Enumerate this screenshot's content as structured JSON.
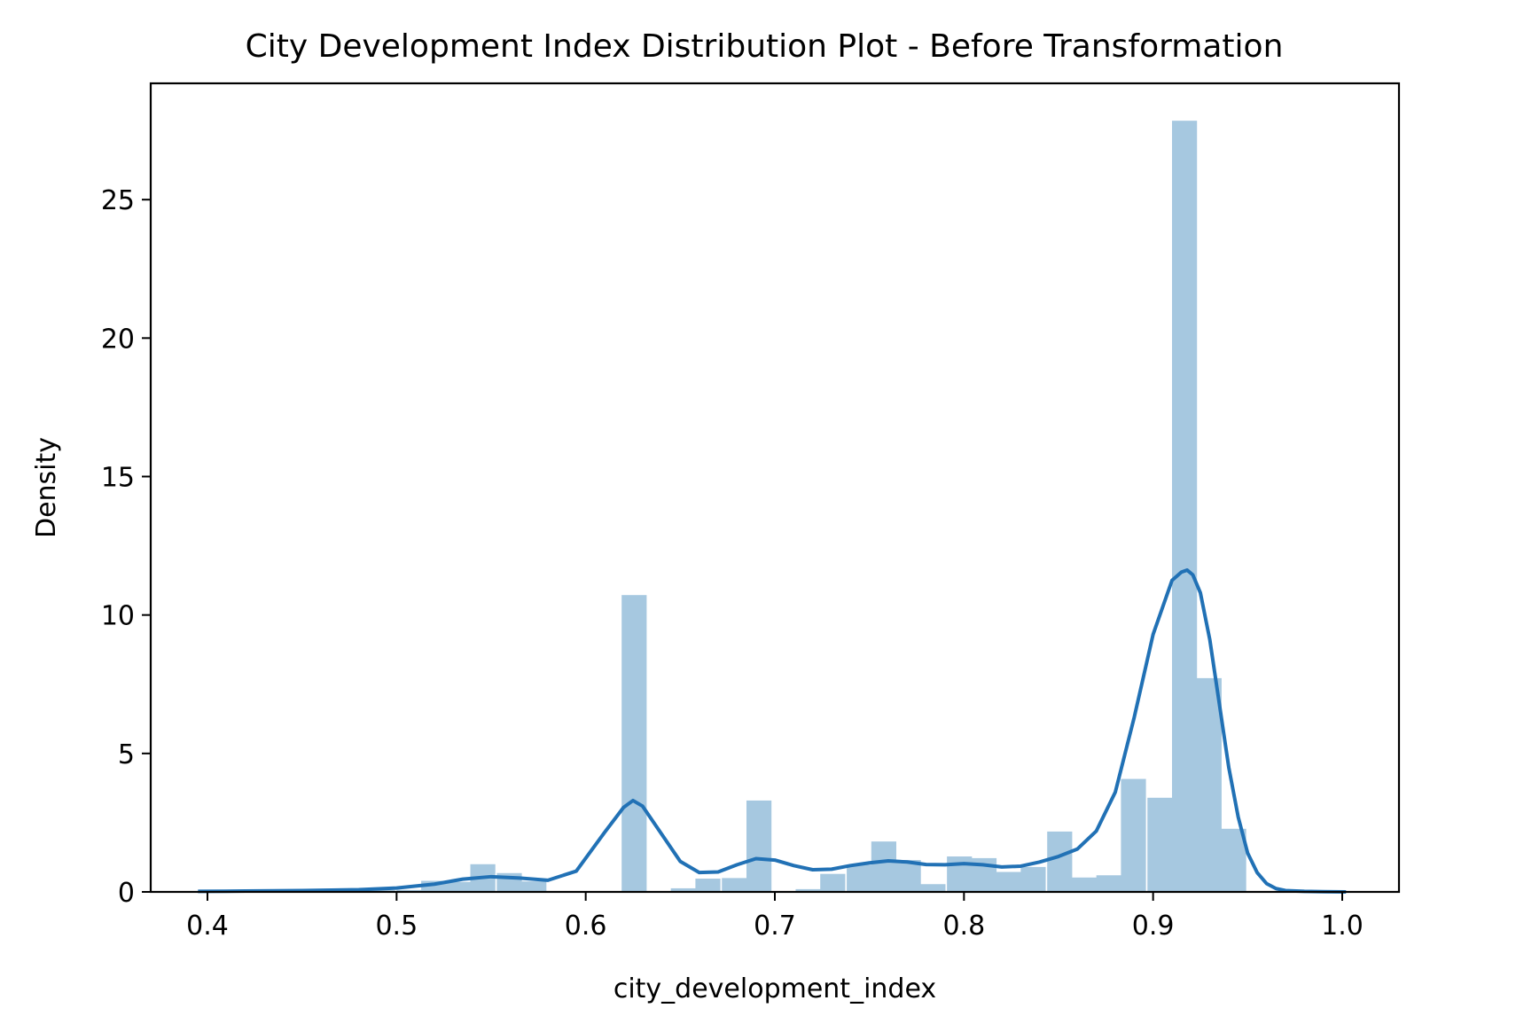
{
  "chart_data": {
    "type": "histogram",
    "title": "City Development Index Distribution Plot - Before Transformation",
    "xlabel": "city_development_index",
    "ylabel": "Density",
    "xlim": [
      0.37,
      1.03
    ],
    "ylim": [
      0,
      29.2
    ],
    "xticks": [
      0.4,
      0.5,
      0.6,
      0.7,
      0.8,
      0.9,
      1.0
    ],
    "xtick_labels": [
      "0.4",
      "0.5",
      "0.6",
      "0.7",
      "0.8",
      "0.9",
      "1.0"
    ],
    "yticks": [
      0,
      5,
      10,
      15,
      20,
      25
    ],
    "ytick_labels": [
      "0",
      "5",
      "10",
      "15",
      "20",
      "25"
    ],
    "grid": false,
    "legend": "none",
    "colors": {
      "bars": "#a6c8e0",
      "kde": "#2171b5",
      "axes": "#000000"
    },
    "bin_width": 0.01322,
    "bins": [
      {
        "x0": 0.447,
        "density": 0.05
      },
      {
        "x0": 0.46,
        "density": 0.05
      },
      {
        "x0": 0.486,
        "density": 0.06
      },
      {
        "x0": 0.5,
        "density": 0.07
      },
      {
        "x0": 0.513,
        "density": 0.4
      },
      {
        "x0": 0.526,
        "density": 0.36
      },
      {
        "x0": 0.539,
        "density": 1.0
      },
      {
        "x0": 0.553,
        "density": 0.68
      },
      {
        "x0": 0.566,
        "density": 0.38
      },
      {
        "x0": 0.619,
        "density": 10.72
      },
      {
        "x0": 0.645,
        "density": 0.13
      },
      {
        "x0": 0.658,
        "density": 0.48
      },
      {
        "x0": 0.672,
        "density": 0.5
      },
      {
        "x0": 0.685,
        "density": 3.3
      },
      {
        "x0": 0.711,
        "density": 0.1
      },
      {
        "x0": 0.724,
        "density": 0.65
      },
      {
        "x0": 0.738,
        "density": 0.98
      },
      {
        "x0": 0.751,
        "density": 1.82
      },
      {
        "x0": 0.764,
        "density": 1.15
      },
      {
        "x0": 0.777,
        "density": 0.28
      },
      {
        "x0": 0.791,
        "density": 1.28
      },
      {
        "x0": 0.804,
        "density": 1.22
      },
      {
        "x0": 0.817,
        "density": 0.72
      },
      {
        "x0": 0.83,
        "density": 0.9
      },
      {
        "x0": 0.844,
        "density": 2.18
      },
      {
        "x0": 0.857,
        "density": 0.52
      },
      {
        "x0": 0.87,
        "density": 0.6
      },
      {
        "x0": 0.883,
        "density": 4.08
      },
      {
        "x0": 0.897,
        "density": 3.4
      },
      {
        "x0": 0.91,
        "density": 27.85
      },
      {
        "x0": 0.923,
        "density": 7.72
      },
      {
        "x0": 0.936,
        "density": 2.28
      }
    ],
    "kde": {
      "x": [
        0.395,
        0.42,
        0.45,
        0.48,
        0.5,
        0.52,
        0.535,
        0.55,
        0.565,
        0.58,
        0.595,
        0.61,
        0.62,
        0.625,
        0.63,
        0.64,
        0.65,
        0.66,
        0.67,
        0.68,
        0.69,
        0.7,
        0.71,
        0.72,
        0.73,
        0.74,
        0.75,
        0.76,
        0.77,
        0.78,
        0.79,
        0.8,
        0.81,
        0.82,
        0.83,
        0.84,
        0.85,
        0.86,
        0.87,
        0.88,
        0.89,
        0.9,
        0.91,
        0.915,
        0.918,
        0.921,
        0.925,
        0.93,
        0.935,
        0.94,
        0.945,
        0.95,
        0.955,
        0.96,
        0.965,
        0.97,
        0.98,
        0.99,
        1.002
      ],
      "y": [
        0.02,
        0.03,
        0.05,
        0.08,
        0.14,
        0.28,
        0.46,
        0.55,
        0.5,
        0.42,
        0.75,
        2.15,
        3.05,
        3.3,
        3.1,
        2.1,
        1.1,
        0.7,
        0.72,
        0.98,
        1.2,
        1.15,
        0.95,
        0.8,
        0.82,
        0.95,
        1.05,
        1.12,
        1.08,
        0.99,
        0.98,
        1.02,
        0.98,
        0.9,
        0.93,
        1.08,
        1.28,
        1.55,
        2.2,
        3.6,
        6.3,
        9.3,
        11.25,
        11.55,
        11.62,
        11.45,
        10.8,
        9.1,
        6.8,
        4.5,
        2.7,
        1.4,
        0.7,
        0.3,
        0.12,
        0.05,
        0.02,
        0.01,
        0.0
      ]
    }
  }
}
